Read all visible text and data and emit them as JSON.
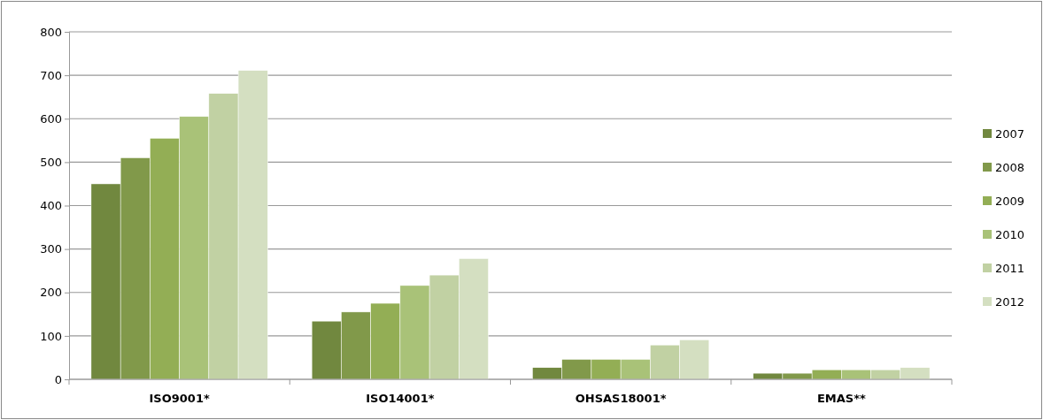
{
  "chart_data": {
    "type": "bar",
    "categories": [
      "ISO9001*",
      "ISO14001*",
      "OHSAS18001*",
      "EMAS**"
    ],
    "series": [
      {
        "name": "2007",
        "color": "#71883f",
        "values": [
          450,
          134,
          27,
          14
        ]
      },
      {
        "name": "2008",
        "color": "#81994a",
        "values": [
          510,
          155,
          46,
          14
        ]
      },
      {
        "name": "2009",
        "color": "#93ae55",
        "values": [
          555,
          175,
          46,
          22
        ]
      },
      {
        "name": "2010",
        "color": "#a9c278",
        "values": [
          605,
          216,
          46,
          22
        ]
      },
      {
        "name": "2011",
        "color": "#c1d1a3",
        "values": [
          658,
          240,
          79,
          22
        ]
      },
      {
        "name": "2012",
        "color": "#d4dfc1",
        "values": [
          711,
          278,
          91,
          27
        ]
      }
    ],
    "ylim": [
      0,
      800
    ],
    "yticks": [
      0,
      100,
      200,
      300,
      400,
      500,
      600,
      700,
      800
    ],
    "grid": "y",
    "legend": "right"
  }
}
